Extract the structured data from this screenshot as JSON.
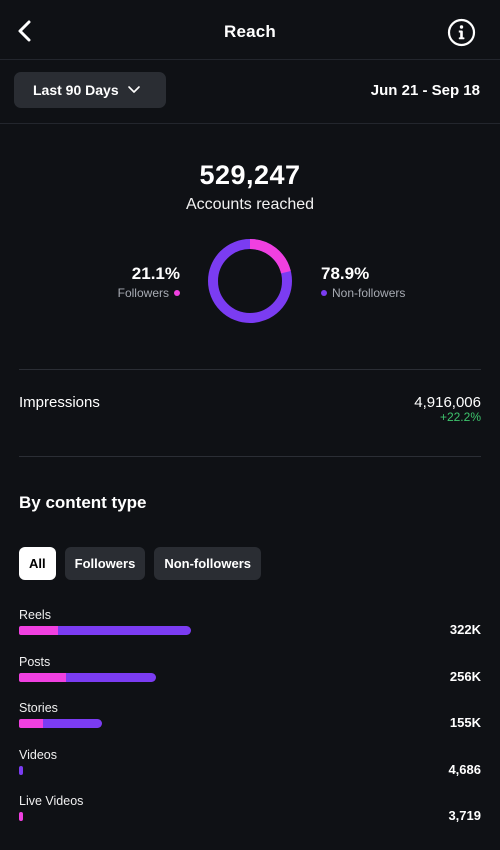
{
  "header": {
    "title": "Reach"
  },
  "range": {
    "selected": "Last 90 Days",
    "dates": "Jun 21 - Sep 18"
  },
  "reach": {
    "total": "529,247",
    "label": "Accounts reached",
    "followers_pct": "21.1%",
    "followers_label": "Followers",
    "followers_fraction": 0.211,
    "nonfollowers_pct": "78.9%",
    "nonfollowers_label": "Non-followers",
    "followers_color": "#f040e0",
    "nonfollowers_color": "#7b3cf2"
  },
  "impressions": {
    "label": "Impressions",
    "value": "4,916,006",
    "change": "+22.2%",
    "change_color": "#3ec46d"
  },
  "content": {
    "title": "By content type",
    "filters": [
      "All",
      "Followers",
      "Non-followers"
    ],
    "active_filter": "All",
    "scale_max": 322000,
    "items": [
      {
        "label": "Reels",
        "value": "322K",
        "total": 322000,
        "followers": 73000
      },
      {
        "label": "Posts",
        "value": "256K",
        "total": 256000,
        "followers": 88000
      },
      {
        "label": "Stories",
        "value": "155K",
        "total": 155000,
        "followers": 44000
      },
      {
        "label": "Videos",
        "value": "4,686",
        "total": 4686,
        "followers": 0
      },
      {
        "label": "Live Videos",
        "value": "3,719",
        "total": 3719,
        "followers": 3719
      }
    ]
  }
}
